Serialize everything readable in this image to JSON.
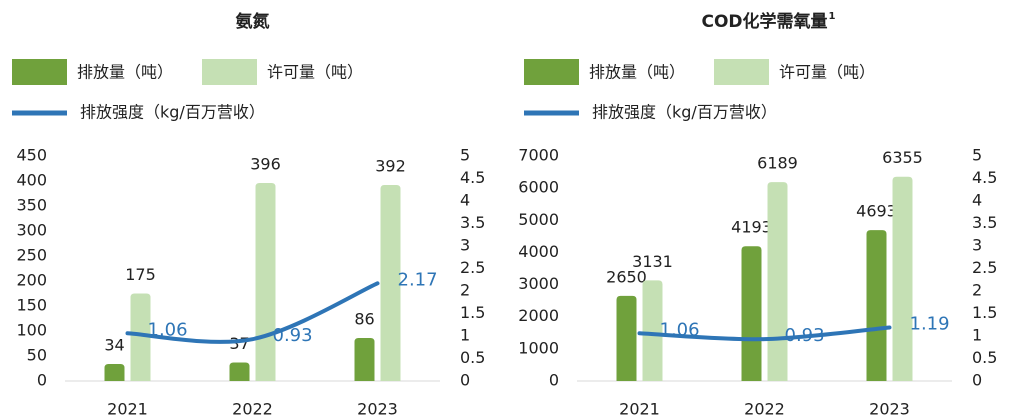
{
  "chart_data": [
    {
      "type": "bar",
      "title": "氨氮",
      "categories": [
        "2021",
        "2022",
        "2023"
      ],
      "series": [
        {
          "name": "排放量（吨）",
          "color": "#70a13c",
          "values": [
            34,
            37,
            86
          ]
        },
        {
          "name": "许可量（吨）",
          "color": "#c5e0b4",
          "values": [
            175,
            396,
            392
          ]
        },
        {
          "name": "排放强度（kg/百万营收）",
          "color": "#2e75b6",
          "type": "line",
          "axis": "y2",
          "values": [
            1.06,
            0.93,
            2.17
          ]
        }
      ],
      "ylim": [
        0,
        450
      ],
      "yticks": [
        0,
        50,
        100,
        150,
        200,
        250,
        300,
        350,
        400,
        450
      ],
      "y2lim": [
        0,
        5
      ],
      "y2ticks": [
        0,
        0.5,
        1,
        1.5,
        2,
        2.5,
        3,
        3.5,
        4,
        4.5,
        5
      ],
      "grid": false
    },
    {
      "type": "bar",
      "title": "COD化学需氧量",
      "title_note": "1",
      "categories": [
        "2021",
        "2022",
        "2023"
      ],
      "series": [
        {
          "name": "排放量（吨）",
          "color": "#70a13c",
          "values": [
            2650,
            4193,
            4693
          ]
        },
        {
          "name": "许可量（吨）",
          "color": "#c5e0b4",
          "values": [
            3131,
            6189,
            6355
          ]
        },
        {
          "name": "排放强度（kg/百万营收）",
          "color": "#2e75b6",
          "type": "line",
          "axis": "y2",
          "values": [
            1.06,
            0.93,
            1.19
          ]
        }
      ],
      "ylim": [
        0,
        7000
      ],
      "yticks": [
        0,
        1000,
        2000,
        3000,
        4000,
        5000,
        6000,
        7000
      ],
      "y2lim": [
        0,
        5
      ],
      "y2ticks": [
        0,
        0.5,
        1,
        1.5,
        2,
        2.5,
        3,
        3.5,
        4,
        4.5,
        5
      ],
      "grid": false
    }
  ]
}
